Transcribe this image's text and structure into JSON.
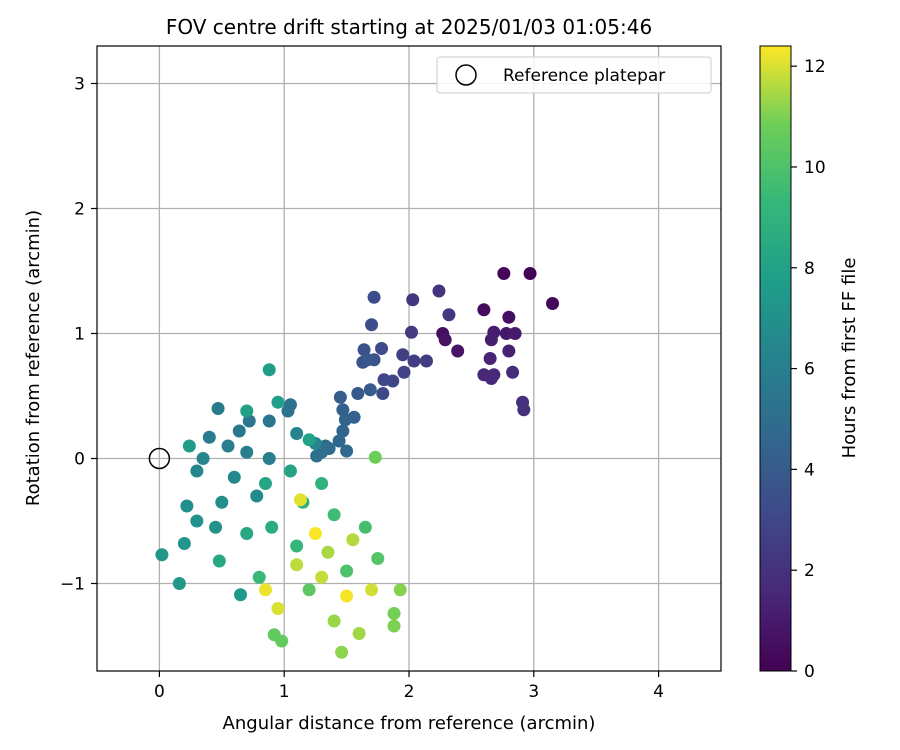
{
  "chart_data": {
    "type": "scatter",
    "title": "FOV centre drift starting at 2025/01/03 01:05:46",
    "xlabel": "Angular distance from reference (arcmin)",
    "ylabel": "Rotation from reference (arcmin)",
    "xlim": [
      -0.5,
      4.5
    ],
    "ylim": [
      -1.7,
      3.3
    ],
    "xticks": [
      0,
      1,
      2,
      3,
      4
    ],
    "yticks": [
      -1,
      0,
      1,
      2,
      3
    ],
    "grid": true,
    "legend": {
      "placement": "top-right",
      "entries": [
        "Reference platepar"
      ]
    },
    "reference_point": {
      "x": 0,
      "y": 0,
      "label": "Reference platepar"
    },
    "colorbar": {
      "label": "Hours from first FF file",
      "range": [
        0,
        12.4
      ],
      "ticks": [
        0,
        2,
        4,
        6,
        8,
        10,
        12
      ],
      "colormap": "viridis"
    },
    "series": [
      {
        "color_by": "hours",
        "points": [
          {
            "x": 2.97,
            "y": 1.48,
            "c": 0.1
          },
          {
            "x": 2.76,
            "y": 1.48,
            "c": 0.2
          },
          {
            "x": 3.15,
            "y": 1.24,
            "c": 0.3
          },
          {
            "x": 2.6,
            "y": 1.19,
            "c": 0.4
          },
          {
            "x": 2.8,
            "y": 1.13,
            "c": 0.5
          },
          {
            "x": 2.27,
            "y": 1.0,
            "c": 0.6
          },
          {
            "x": 2.29,
            "y": 0.95,
            "c": 0.7
          },
          {
            "x": 2.39,
            "y": 0.86,
            "c": 0.8
          },
          {
            "x": 2.78,
            "y": 1.0,
            "c": 0.9
          },
          {
            "x": 2.85,
            "y": 1.0,
            "c": 1.0
          },
          {
            "x": 2.68,
            "y": 1.01,
            "c": 1.1
          },
          {
            "x": 2.66,
            "y": 0.95,
            "c": 1.2
          },
          {
            "x": 2.8,
            "y": 0.86,
            "c": 1.3
          },
          {
            "x": 2.65,
            "y": 0.8,
            "c": 1.4
          },
          {
            "x": 2.6,
            "y": 0.67,
            "c": 1.5
          },
          {
            "x": 2.66,
            "y": 0.64,
            "c": 1.6
          },
          {
            "x": 2.68,
            "y": 0.67,
            "c": 1.7
          },
          {
            "x": 2.83,
            "y": 0.69,
            "c": 1.8
          },
          {
            "x": 2.91,
            "y": 0.45,
            "c": 1.9
          },
          {
            "x": 2.92,
            "y": 0.39,
            "c": 2.0
          },
          {
            "x": 2.24,
            "y": 1.34,
            "c": 2.1
          },
          {
            "x": 2.32,
            "y": 1.15,
            "c": 2.2
          },
          {
            "x": 2.03,
            "y": 1.27,
            "c": 2.3
          },
          {
            "x": 2.02,
            "y": 1.01,
            "c": 2.4
          },
          {
            "x": 2.14,
            "y": 0.78,
            "c": 2.5
          },
          {
            "x": 2.04,
            "y": 0.78,
            "c": 2.6
          },
          {
            "x": 1.95,
            "y": 0.83,
            "c": 2.7
          },
          {
            "x": 1.96,
            "y": 0.69,
            "c": 2.8
          },
          {
            "x": 1.87,
            "y": 0.62,
            "c": 2.9
          },
          {
            "x": 1.8,
            "y": 0.63,
            "c": 3.0
          },
          {
            "x": 1.79,
            "y": 0.52,
            "c": 3.1
          },
          {
            "x": 1.78,
            "y": 0.88,
            "c": 3.2
          },
          {
            "x": 1.72,
            "y": 1.29,
            "c": 3.3
          },
          {
            "x": 1.7,
            "y": 1.07,
            "c": 3.4
          },
          {
            "x": 1.72,
            "y": 0.79,
            "c": 3.5
          },
          {
            "x": 1.64,
            "y": 0.87,
            "c": 3.6
          },
          {
            "x": 1.63,
            "y": 0.77,
            "c": 3.7
          },
          {
            "x": 1.67,
            "y": 0.79,
            "c": 3.8
          },
          {
            "x": 1.59,
            "y": 0.52,
            "c": 3.9
          },
          {
            "x": 1.69,
            "y": 0.55,
            "c": 4.0
          },
          {
            "x": 1.45,
            "y": 0.49,
            "c": 4.1
          },
          {
            "x": 1.47,
            "y": 0.39,
            "c": 4.2
          },
          {
            "x": 1.56,
            "y": 0.33,
            "c": 4.3
          },
          {
            "x": 1.49,
            "y": 0.31,
            "c": 4.4
          },
          {
            "x": 1.47,
            "y": 0.22,
            "c": 4.5
          },
          {
            "x": 1.44,
            "y": 0.14,
            "c": 4.6
          },
          {
            "x": 1.5,
            "y": 0.06,
            "c": 4.7
          },
          {
            "x": 1.33,
            "y": 0.1,
            "c": 4.8
          },
          {
            "x": 1.36,
            "y": 0.08,
            "c": 4.9
          },
          {
            "x": 1.3,
            "y": 0.05,
            "c": 5.0
          },
          {
            "x": 1.26,
            "y": 0.02,
            "c": 5.1
          },
          {
            "x": 1.05,
            "y": 0.43,
            "c": 5.2
          },
          {
            "x": 1.03,
            "y": 0.38,
            "c": 5.3
          },
          {
            "x": 0.88,
            "y": 0.3,
            "c": 5.4
          },
          {
            "x": 0.72,
            "y": 0.3,
            "c": 5.5
          },
          {
            "x": 0.64,
            "y": 0.22,
            "c": 5.6
          },
          {
            "x": 0.47,
            "y": 0.4,
            "c": 5.7
          },
          {
            "x": 0.4,
            "y": 0.17,
            "c": 5.8
          },
          {
            "x": 0.55,
            "y": 0.1,
            "c": 5.9
          },
          {
            "x": 0.7,
            "y": 0.05,
            "c": 6.0
          },
          {
            "x": 0.88,
            "y": 0.0,
            "c": 6.1
          },
          {
            "x": 1.1,
            "y": 0.2,
            "c": 6.2
          },
          {
            "x": 1.25,
            "y": 0.12,
            "c": 6.3
          },
          {
            "x": 0.35,
            "y": 0.0,
            "c": 6.4
          },
          {
            "x": 0.3,
            "y": -0.1,
            "c": 6.5
          },
          {
            "x": 0.6,
            "y": -0.15,
            "c": 6.6
          },
          {
            "x": 0.78,
            "y": -0.3,
            "c": 6.7
          },
          {
            "x": 0.5,
            "y": -0.35,
            "c": 6.8
          },
          {
            "x": 0.22,
            "y": -0.38,
            "c": 6.9
          },
          {
            "x": 0.3,
            "y": -0.5,
            "c": 7.0
          },
          {
            "x": 0.45,
            "y": -0.55,
            "c": 7.1
          },
          {
            "x": 0.2,
            "y": -0.68,
            "c": 7.2
          },
          {
            "x": 0.02,
            "y": -0.77,
            "c": 7.3
          },
          {
            "x": 0.16,
            "y": -1.0,
            "c": 7.4
          },
          {
            "x": 0.65,
            "y": -1.09,
            "c": 7.5
          },
          {
            "x": 0.24,
            "y": 0.1,
            "c": 7.6
          },
          {
            "x": 0.88,
            "y": 0.71,
            "c": 7.7
          },
          {
            "x": 0.95,
            "y": 0.45,
            "c": 7.8
          },
          {
            "x": 0.7,
            "y": 0.38,
            "c": 7.9
          },
          {
            "x": 1.2,
            "y": 0.15,
            "c": 8.0
          },
          {
            "x": 1.05,
            "y": -0.1,
            "c": 8.1
          },
          {
            "x": 0.85,
            "y": -0.2,
            "c": 8.2
          },
          {
            "x": 0.7,
            "y": -0.6,
            "c": 8.3
          },
          {
            "x": 0.48,
            "y": -0.82,
            "c": 8.4
          },
          {
            "x": 0.9,
            "y": -0.55,
            "c": 8.6
          },
          {
            "x": 1.15,
            "y": -0.35,
            "c": 8.8
          },
          {
            "x": 1.3,
            "y": -0.2,
            "c": 9.0
          },
          {
            "x": 1.1,
            "y": -0.7,
            "c": 9.2
          },
          {
            "x": 0.8,
            "y": -0.95,
            "c": 9.4
          },
          {
            "x": 1.4,
            "y": -0.45,
            "c": 9.6
          },
          {
            "x": 1.65,
            "y": -0.55,
            "c": 9.8
          },
          {
            "x": 1.5,
            "y": -0.9,
            "c": 10.0
          },
          {
            "x": 1.75,
            "y": -0.8,
            "c": 10.2
          },
          {
            "x": 1.2,
            "y": -1.05,
            "c": 10.4
          },
          {
            "x": 0.92,
            "y": -1.41,
            "c": 10.5
          },
          {
            "x": 0.98,
            "y": -1.46,
            "c": 10.6
          },
          {
            "x": 1.73,
            "y": 0.01,
            "c": 10.8
          },
          {
            "x": 1.88,
            "y": -1.24,
            "c": 10.9
          },
          {
            "x": 1.88,
            "y": -1.34,
            "c": 11.0
          },
          {
            "x": 1.93,
            "y": -1.05,
            "c": 11.1
          },
          {
            "x": 1.46,
            "y": -1.55,
            "c": 11.2
          },
          {
            "x": 1.4,
            "y": -1.3,
            "c": 11.3
          },
          {
            "x": 1.6,
            "y": -1.4,
            "c": 11.4
          },
          {
            "x": 1.35,
            "y": -0.75,
            "c": 11.5
          },
          {
            "x": 1.55,
            "y": -0.65,
            "c": 11.6
          },
          {
            "x": 1.1,
            "y": -0.85,
            "c": 11.7
          },
          {
            "x": 1.3,
            "y": -0.95,
            "c": 11.8
          },
          {
            "x": 1.7,
            "y": -1.05,
            "c": 11.9
          },
          {
            "x": 0.95,
            "y": -1.2,
            "c": 12.0
          },
          {
            "x": 1.13,
            "y": -0.33,
            "c": 12.1
          },
          {
            "x": 0.85,
            "y": -1.05,
            "c": 12.2
          },
          {
            "x": 1.5,
            "y": -1.1,
            "c": 12.3
          },
          {
            "x": 1.25,
            "y": -0.6,
            "c": 12.35
          }
        ]
      }
    ]
  }
}
